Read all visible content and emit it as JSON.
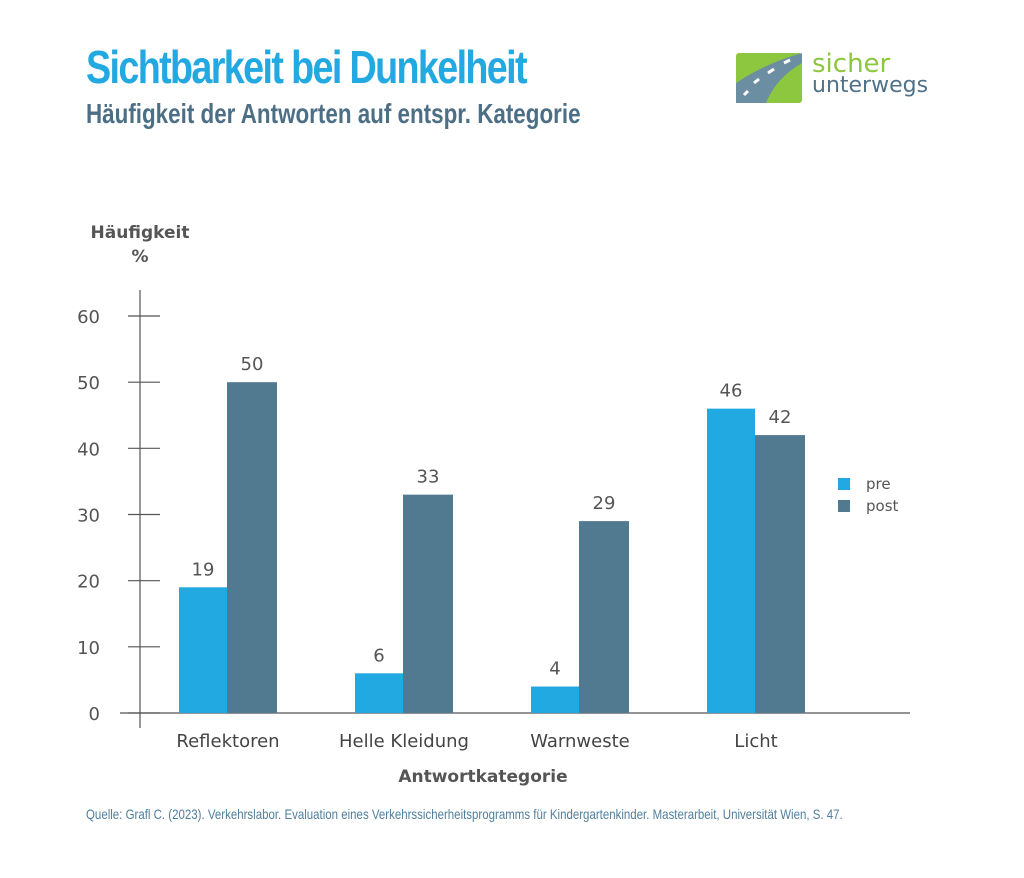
{
  "header": {
    "title": "Sichtbarkeit bei Dunkelheit",
    "subtitle": "Häufigkeit der Antworten auf entspr. Kategorie"
  },
  "logo": {
    "line1": "sicher",
    "line2": "unterwegs"
  },
  "source": "Quelle: Grafl C. (2023). Verkehrslabor. Evaluation eines Verkehrssicherheitsprogramms für Kindergartenkinder. Masterarbeit, Universität Wien, S. 47.",
  "colors": {
    "pre": "#23a9e1",
    "post": "#517a90"
  },
  "chart_data": {
    "type": "bar",
    "ylabel": "Häufigkeit",
    "yunit": "%",
    "xlabel": "Antwortkategorie",
    "categories": [
      "Reflektoren",
      "Helle Kleidung",
      "Warnweste",
      "Licht"
    ],
    "series": [
      {
        "name": "pre",
        "values": [
          19,
          6,
          4,
          46
        ]
      },
      {
        "name": "post",
        "values": [
          50,
          33,
          29,
          42
        ]
      }
    ],
    "ylim": [
      0,
      60
    ],
    "yticks": [
      0,
      10,
      20,
      30,
      40,
      50,
      60
    ],
    "grid": false,
    "legend": "right"
  }
}
